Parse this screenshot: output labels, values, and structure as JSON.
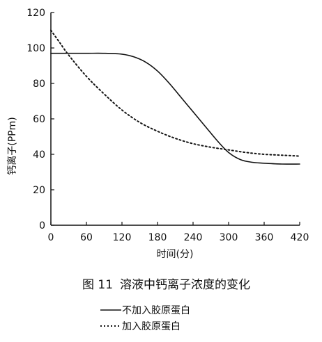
{
  "chart_data": {
    "type": "line",
    "title": "溶液中钙离子浓度的变化",
    "figure_label": "图 11",
    "xlabel": "时间(分)",
    "ylabel": "钙离子(PPm)",
    "xlim": [
      0,
      420
    ],
    "ylim": [
      0,
      120
    ],
    "xticks": [
      0,
      60,
      120,
      180,
      240,
      300,
      360,
      420
    ],
    "yticks": [
      0,
      20,
      40,
      60,
      80,
      100,
      120
    ],
    "grid": false,
    "legend_position": "bottom",
    "series": [
      {
        "name": "不加入胶原蛋白",
        "style": "solid",
        "x": [
          0,
          30,
          60,
          90,
          120,
          140,
          160,
          180,
          200,
          220,
          240,
          260,
          280,
          300,
          320,
          340,
          360,
          390,
          420
        ],
        "y": [
          97,
          97,
          97,
          97,
          96.5,
          95,
          92,
          87,
          80,
          72,
          64,
          56,
          48,
          41,
          37,
          35.5,
          35,
          34.5,
          34.5
        ]
      },
      {
        "name": "加入胶原蛋白",
        "style": "dotted",
        "x": [
          0,
          15,
          30,
          60,
          90,
          120,
          150,
          180,
          210,
          240,
          270,
          300,
          330,
          360,
          390,
          420
        ],
        "y": [
          110,
          103,
          96,
          84,
          74,
          65,
          58,
          53,
          49,
          46,
          44,
          42.5,
          41,
          40,
          39.5,
          39
        ]
      }
    ]
  }
}
